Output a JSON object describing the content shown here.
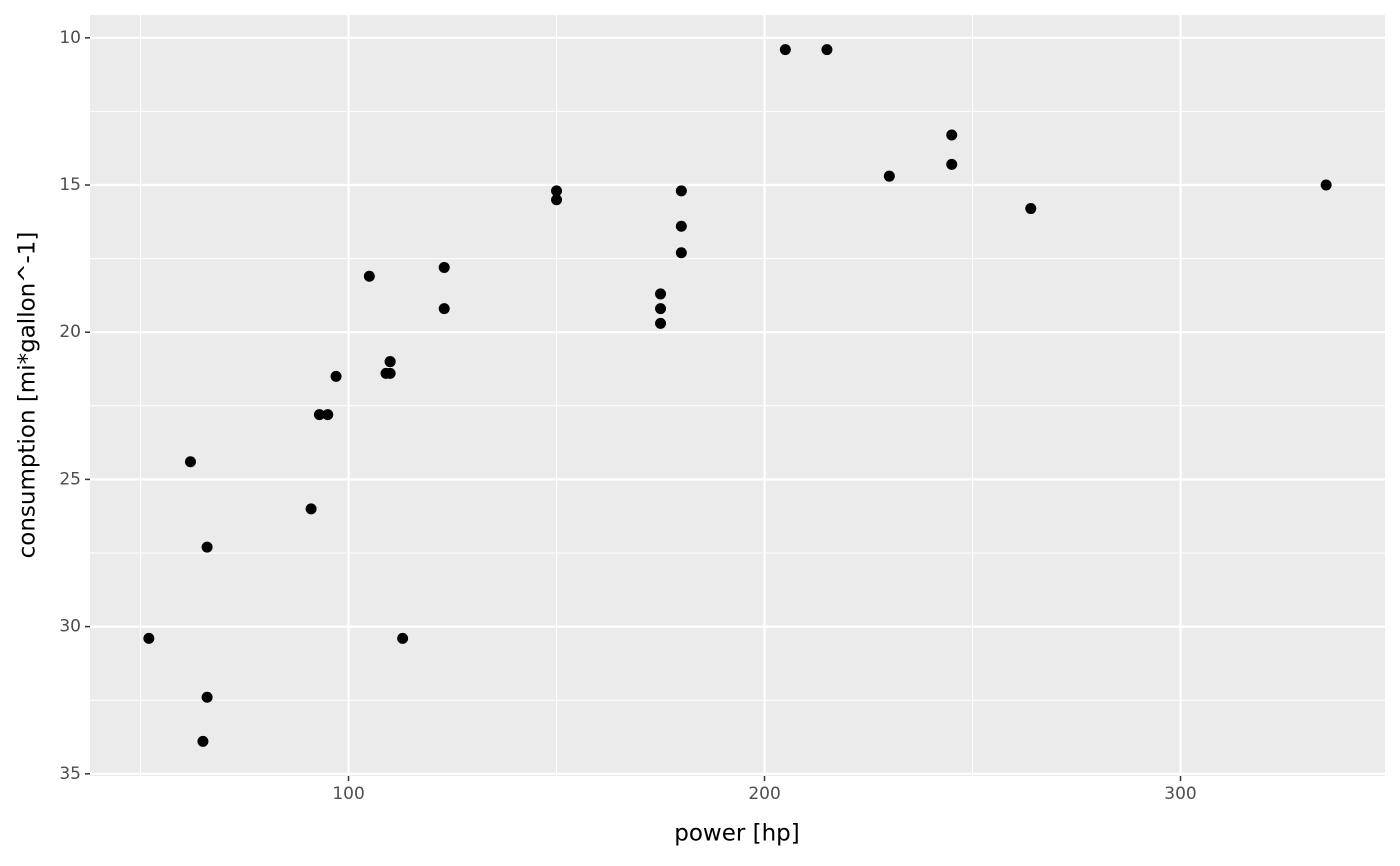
{
  "chart_data": {
    "type": "scatter",
    "x_label": "power [hp]",
    "y_label": "consumption [mi*gallon^-1]",
    "x": [
      110,
      110,
      93,
      110,
      175,
      105,
      245,
      62,
      95,
      123,
      123,
      180,
      180,
      180,
      205,
      215,
      230,
      66,
      52,
      65,
      97,
      150,
      150,
      245,
      175,
      66,
      91,
      113,
      264,
      175,
      335,
      109
    ],
    "values": [
      21.0,
      21.0,
      22.8,
      21.4,
      18.7,
      18.1,
      14.3,
      24.4,
      22.8,
      19.2,
      17.8,
      16.4,
      17.3,
      15.2,
      10.4,
      10.4,
      14.7,
      32.4,
      30.4,
      33.9,
      21.5,
      15.5,
      15.2,
      13.3,
      19.2,
      27.3,
      26.0,
      30.4,
      15.8,
      19.7,
      15.0,
      21.4
    ],
    "color": "#000000",
    "xlim": [
      37.85,
      349.15
    ],
    "xticks": [
      100,
      200,
      300
    ],
    "x_minor_ticks": [
      50,
      150,
      250
    ],
    "ylim": [
      35.075,
      9.225
    ],
    "yticks": [
      10,
      15,
      20,
      25,
      30,
      35
    ],
    "y_minor_ticks": [
      12.5,
      17.5,
      22.5,
      27.5,
      32.5
    ],
    "grid": true
  }
}
